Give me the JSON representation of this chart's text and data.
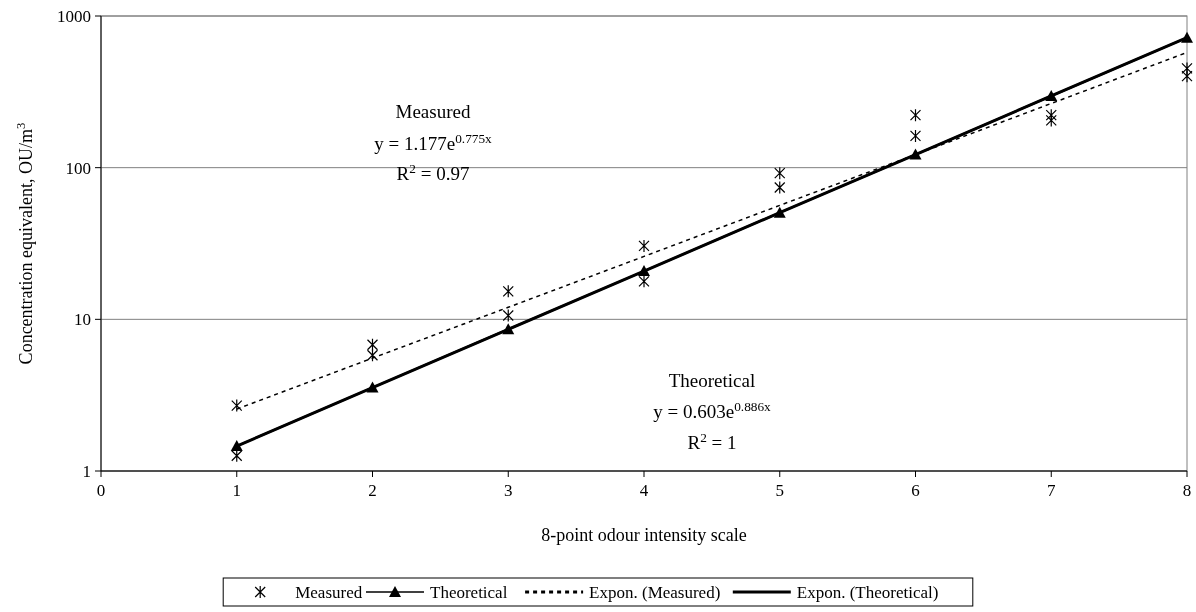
{
  "chart_data": {
    "type": "scatter",
    "xlabel": "8-point odour intensity scale",
    "ylabel": "Concentration equivalent, OU/m$^{3}$",
    "xlim": [
      0,
      8
    ],
    "xticks": [
      0,
      1,
      2,
      3,
      4,
      5,
      6,
      7,
      8
    ],
    "ylim": [
      1,
      1000
    ],
    "yticks": [
      1,
      10,
      100,
      1000
    ],
    "log": "y",
    "grid": "y",
    "legend": "bottom",
    "annotations": [
      "Measured",
      "y = 1.177e$^{0.775x}$",
      "R$^{2}$ = 0.97",
      "Theoretical",
      "y = 0.603e$^{0.886x}$",
      "R$^{2}$ = 1"
    ],
    "series": [
      {
        "name": "Measured",
        "marker": "cross",
        "color": "#000000",
        "x": [
          1,
          1,
          2,
          2,
          3,
          3,
          4,
          4,
          5,
          5,
          6,
          6,
          7,
          7,
          8,
          8
        ],
        "values": [
          2.7,
          1.26,
          6.8,
          5.8,
          15.3,
          10.6,
          30.5,
          17.8,
          92,
          74,
          222,
          162,
          222,
          205,
          451,
          401
        ]
      },
      {
        "name": "Theoretical",
        "type": "line",
        "marker": "triangle",
        "line_style": "solid",
        "color": "#000000",
        "x": [
          1,
          2,
          3,
          4,
          5,
          6,
          7,
          8
        ],
        "values": [
          1.46,
          3.55,
          8.6,
          20.8,
          50.5,
          122,
          297,
          720
        ]
      },
      {
        "name": "Expon. (Measured)",
        "type": "line",
        "marker": "none",
        "line_style": "dashed",
        "color": "#000000",
        "x": [
          1,
          2,
          3,
          4,
          5,
          6,
          7,
          8
        ],
        "values": [
          2.56,
          5.55,
          12,
          26,
          56.4,
          122,
          265,
          575
        ]
      },
      {
        "name": "Expon. (Theoretical)",
        "type": "line",
        "marker": "none",
        "line_style": "solid",
        "color": "#000000",
        "x": [
          1,
          2,
          3,
          4,
          5,
          6,
          7,
          8
        ],
        "values": [
          1.46,
          3.55,
          8.6,
          20.8,
          50.5,
          122,
          297,
          720
        ]
      }
    ]
  }
}
